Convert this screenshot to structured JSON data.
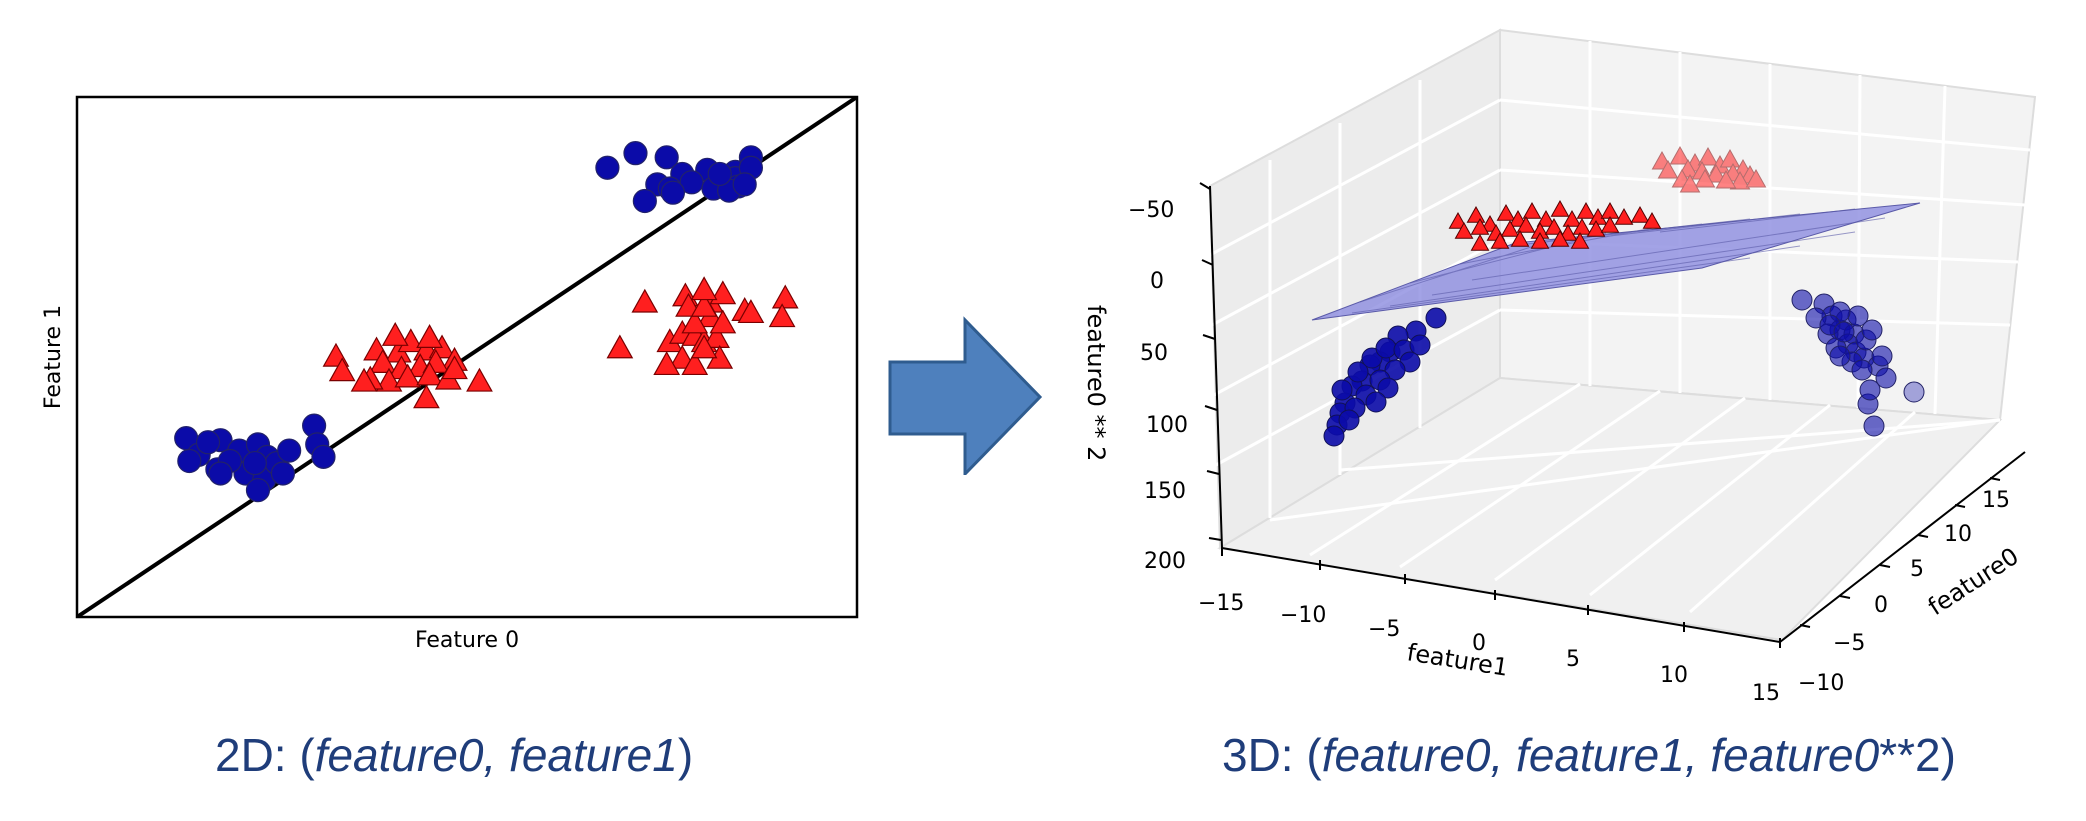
{
  "colors": {
    "class_a": "#0b0ba8",
    "class_b": "#ff1f1f",
    "arrow": "#4e80bd",
    "caption": "#1f3d7a",
    "plane": "#8c8ce0"
  },
  "captions": {
    "left": {
      "prefix": "2D: (",
      "italic": "feature0, feature1",
      "suffix": ")"
    },
    "right": {
      "prefix": "3D: (",
      "italic": "feature0, feature1, feature0",
      "suffix": "**2)"
    }
  },
  "arrow_icon": "right-arrow-icon",
  "chart_data": [
    {
      "type": "scatter",
      "title": "",
      "xlabel": "Feature 0",
      "ylabel": "Feature 1",
      "xlim": [
        -12,
        13
      ],
      "ylim": [
        -11,
        14
      ],
      "ticks_visible": false,
      "decision_line": {
        "x": [
          -12,
          13
        ],
        "y": [
          -11,
          14
        ]
      },
      "series": [
        {
          "marker": "circle",
          "color": "#0b0ba8",
          "points": [
            [
              -8.5,
              -2.4
            ],
            [
              -8.1,
              -3.2
            ],
            [
              -7.4,
              -2.5
            ],
            [
              -6.8,
              -3.0
            ],
            [
              -6.2,
              -2.7
            ],
            [
              -7.8,
              -2.6
            ],
            [
              -8.4,
              -3.5
            ],
            [
              -7.5,
              -3.9
            ],
            [
              -6.6,
              -4.1
            ],
            [
              -5.9,
              -3.3
            ],
            [
              -6.0,
              -4.4
            ],
            [
              -5.6,
              -3.6
            ],
            [
              -5.2,
              -3.0
            ],
            [
              -7.1,
              -3.5
            ],
            [
              -6.3,
              -3.6
            ],
            [
              -5.4,
              -4.1
            ],
            [
              -6.2,
              -4.9
            ],
            [
              -4.4,
              -1.8
            ],
            [
              -4.3,
              -2.7
            ],
            [
              -4.1,
              -3.3
            ],
            [
              -7.4,
              -4.1
            ],
            [
              5.0,
              10.6
            ],
            [
              5.9,
              11.3
            ],
            [
              6.9,
              11.1
            ],
            [
              7.4,
              10.3
            ],
            [
              8.2,
              10.5
            ],
            [
              9.1,
              10.4
            ],
            [
              9.6,
              11.1
            ],
            [
              9.1,
              10.1
            ],
            [
              6.6,
              9.8
            ],
            [
              7.7,
              9.9
            ],
            [
              8.4,
              9.6
            ],
            [
              9.2,
              9.7
            ],
            [
              9.6,
              10.6
            ],
            [
              6.2,
              9.0
            ],
            [
              7.0,
              9.6
            ],
            [
              8.9,
              9.5
            ],
            [
              9.4,
              9.8
            ],
            [
              8.6,
              10.3
            ],
            [
              7.1,
              9.4
            ]
          ]
        },
        {
          "marker": "triangle",
          "color": "#ff1f1f",
          "points": [
            [
              -3.7,
              1.5
            ],
            [
              -3.5,
              0.8
            ],
            [
              -2.4,
              1.8
            ],
            [
              -1.7,
              1.7
            ],
            [
              -1.3,
              2.2
            ],
            [
              -0.8,
              1.8
            ],
            [
              -0.3,
              1.9
            ],
            [
              0.1,
              1.3
            ],
            [
              -2.2,
              1.2
            ],
            [
              -1.6,
              0.9
            ],
            [
              -1.0,
              1.0
            ],
            [
              -0.5,
              1.2
            ],
            [
              -2.0,
              0.3
            ],
            [
              -1.4,
              0.5
            ],
            [
              -0.7,
              0.6
            ],
            [
              -0.1,
              0.4
            ],
            [
              0.9,
              0.3
            ],
            [
              0.1,
              0.9
            ],
            [
              -0.8,
              -0.5
            ],
            [
              -2.6,
              0.4
            ],
            [
              -2.8,
              0.3
            ],
            [
              -1.8,
              2.5
            ],
            [
              -0.7,
              2.4
            ],
            [
              6.2,
              4.1
            ],
            [
              7.5,
              4.4
            ],
            [
              8.3,
              4.1
            ],
            [
              8.7,
              4.5
            ],
            [
              9.4,
              3.7
            ],
            [
              9.6,
              3.6
            ],
            [
              10.7,
              4.3
            ],
            [
              10.6,
              3.4
            ],
            [
              5.4,
              1.9
            ],
            [
              7.0,
              2.2
            ],
            [
              7.4,
              2.6
            ],
            [
              7.8,
              2.5
            ],
            [
              8.1,
              2.2
            ],
            [
              8.5,
              2.4
            ],
            [
              8.3,
              3.4
            ],
            [
              7.8,
              3.1
            ],
            [
              7.6,
              3.9
            ],
            [
              8.1,
              3.9
            ],
            [
              8.7,
              3.1
            ],
            [
              7.4,
              1.4
            ],
            [
              6.9,
              1.1
            ],
            [
              7.8,
              1.1
            ],
            [
              8.6,
              1.4
            ],
            [
              8.1,
              1.9
            ],
            [
              8.1,
              4.7
            ]
          ]
        }
      ]
    },
    {
      "type": "scatter3d",
      "title": "",
      "xlabel": "feature1",
      "ylabel": "feature0",
      "zlabel": "feature0 ** 2",
      "xticks": [
        "−15",
        "−10",
        "−5",
        "0",
        "5",
        "10",
        "15"
      ],
      "yticks": [
        "−10",
        "−5",
        "0",
        "5",
        "10",
        "15"
      ],
      "zticks": [
        "−50",
        "0",
        "50",
        "100",
        "150",
        "200"
      ],
      "plane": "separating-plane",
      "groups": [
        {
          "name_hint": "class-0-left",
          "marker": "circle",
          "color": "#0b0ba8"
        },
        {
          "name_hint": "class-0-right",
          "marker": "circle",
          "color": "#0b0ba8"
        },
        {
          "name_hint": "class-1-front",
          "marker": "triangle",
          "color": "#ff1f1f"
        },
        {
          "name_hint": "class-1-back",
          "marker": "triangle",
          "color": "#ff1f1f"
        }
      ]
    }
  ]
}
